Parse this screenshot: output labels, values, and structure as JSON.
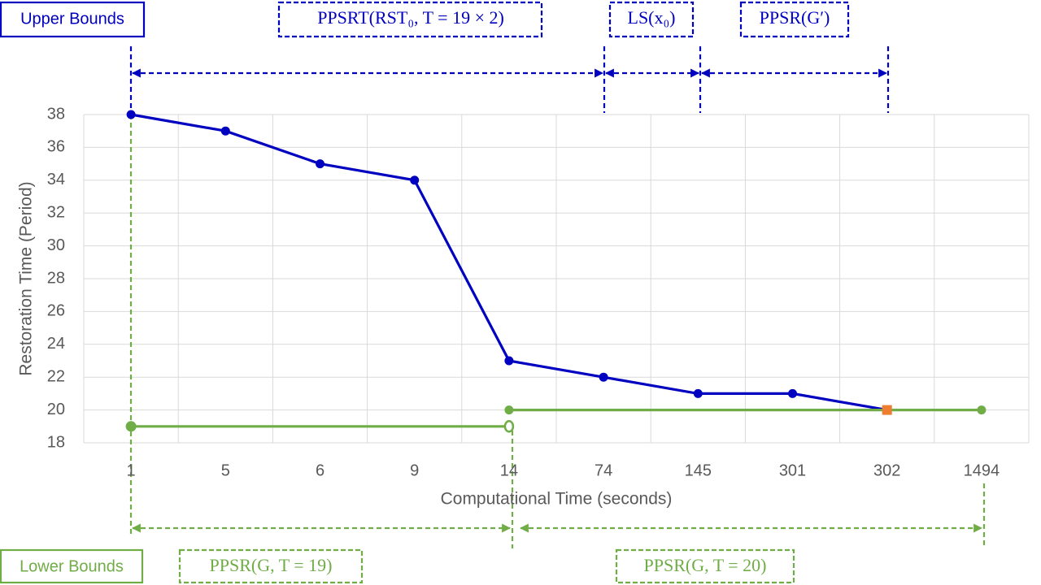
{
  "chart_data": {
    "type": "line",
    "x_label": "Computational Time (seconds)",
    "y_label": "Restoration Time (Period)",
    "categories": [
      "1",
      "5",
      "6",
      "9",
      "14",
      "74",
      "145",
      "301",
      "302",
      "1494"
    ],
    "ylim": [
      18,
      38
    ],
    "yticks": [
      18,
      20,
      22,
      24,
      26,
      28,
      30,
      32,
      34,
      36,
      38
    ],
    "grid": true,
    "series": [
      {
        "color": "#0000c0",
        "marker": "circle",
        "values": [
          38,
          37,
          35,
          34,
          23,
          22,
          21,
          21,
          20,
          null
        ]
      },
      {
        "color": "#70ad47",
        "marker": "ends",
        "end_marker": "open",
        "values": [
          19,
          19,
          19,
          19,
          19,
          null,
          null,
          null,
          null,
          null
        ]
      },
      {
        "color": "#70ad47",
        "marker": "ends",
        "end_marker": "filled",
        "values": [
          null,
          null,
          null,
          null,
          20,
          20,
          20,
          20,
          20,
          20
        ]
      },
      {
        "color": "#ed7d31",
        "marker": "square",
        "values": [
          null,
          null,
          null,
          null,
          null,
          null,
          null,
          null,
          20,
          null
        ]
      }
    ],
    "annotations": [
      "Upper Bounds",
      "PPSRT(RST₀, T = 19 × 2)",
      "LS(x₀)",
      "PPSR(G′)",
      "Lower Bounds",
      "PPSR(G, T = 19)",
      "PPSR(G, T = 20)"
    ]
  }
}
